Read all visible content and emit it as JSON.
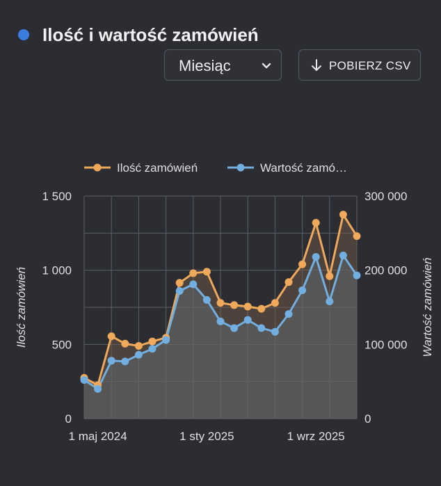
{
  "header": {
    "title": "Ilość i wartość zamówień",
    "period_select": {
      "value": "Miesiąc",
      "icon": "chevron-down-icon"
    },
    "download_button": {
      "label": "POBIERZ CSV",
      "icon": "download-arrow-icon"
    }
  },
  "colors": {
    "accent_dot": "#3b7ddd",
    "orders_series": "#f0a95a",
    "value_series": "#72aee0"
  },
  "chart_data": {
    "type": "line",
    "legend_position": "top",
    "grid": true,
    "x_tick_labels": [
      "1 maj 2024",
      "1 sty 2025",
      "1 wrz 2025"
    ],
    "x_tick_months": [
      "2024-05",
      "2025-01",
      "2025-09"
    ],
    "x": [
      "2024-04",
      "2024-05",
      "2024-06",
      "2024-07",
      "2024-08",
      "2024-09",
      "2024-10",
      "2024-11",
      "2024-12",
      "2025-01",
      "2025-02",
      "2025-03",
      "2025-04",
      "2025-05",
      "2025-06",
      "2025-07",
      "2025-08",
      "2025-09",
      "2025-10",
      "2025-11",
      "2025-12"
    ],
    "y_left": {
      "label": "Ilość zamówień",
      "range": [
        0,
        1500
      ],
      "ticks": [
        0,
        500,
        1000,
        1500
      ],
      "tick_labels": [
        "0",
        "500",
        "1 000",
        "1 500"
      ]
    },
    "y_right": {
      "label": "Wartość zamówień",
      "range": [
        0,
        300000
      ],
      "ticks": [
        0,
        100000,
        200000,
        300000
      ],
      "tick_labels": [
        "0",
        "100 000",
        "200 000",
        "300 000"
      ]
    },
    "series": [
      {
        "name": "Ilość zamówień",
        "legend_label": "Ilość zamówień",
        "axis": "left",
        "values": [
          275,
          225,
          555,
          505,
          490,
          520,
          545,
          915,
          980,
          990,
          780,
          765,
          755,
          740,
          780,
          920,
          1040,
          1320,
          960,
          1375,
          1230
        ]
      },
      {
        "name": "Wartość zamówień",
        "legend_label": "Wartość zamó…",
        "axis": "right",
        "values": [
          52000,
          40000,
          78000,
          77000,
          86000,
          94000,
          106000,
          172000,
          181000,
          160000,
          131000,
          122000,
          133000,
          122000,
          117000,
          141000,
          173000,
          218000,
          158000,
          220000,
          193000
        ]
      }
    ]
  }
}
